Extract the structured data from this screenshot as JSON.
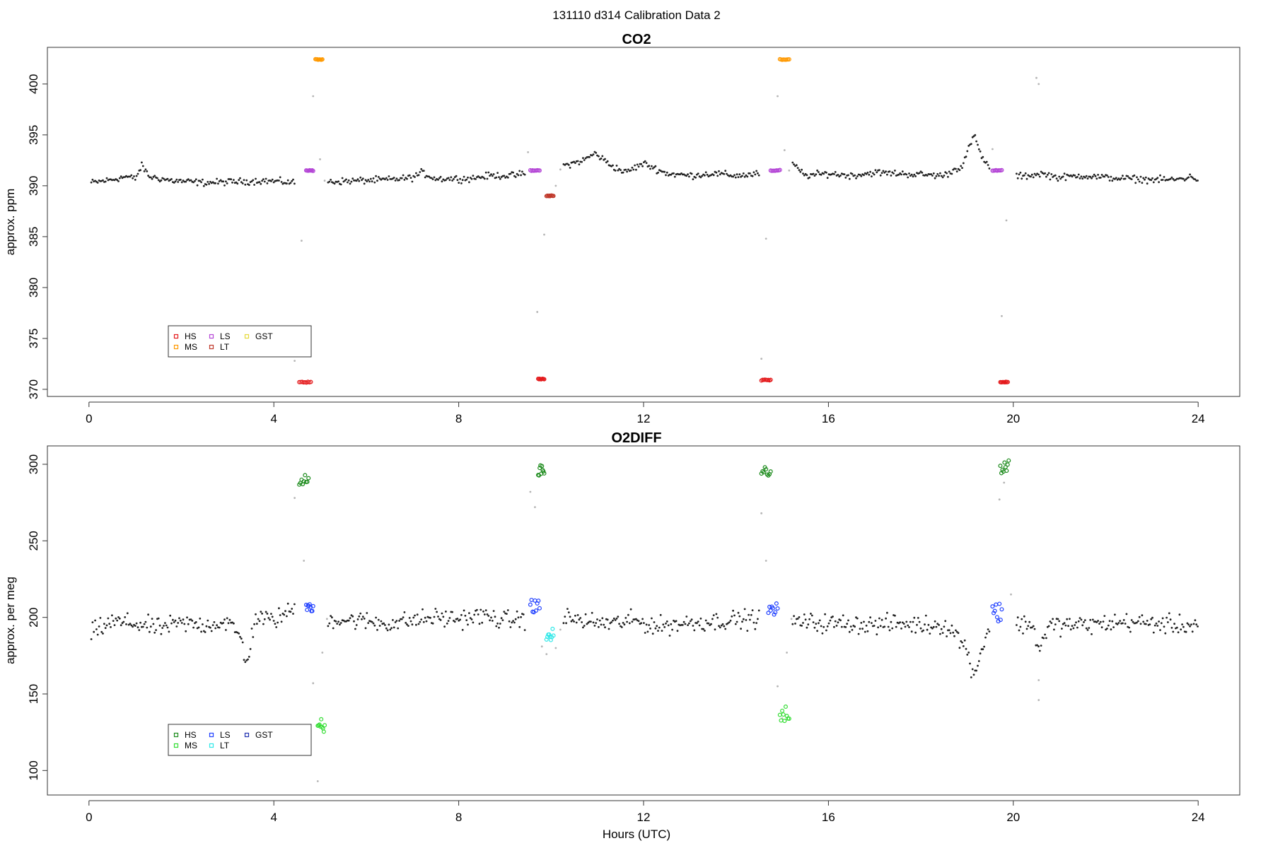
{
  "figure": {
    "suptitle": "131110   d314   Calibration Data 2",
    "xlabel": "Hours (UTC)"
  },
  "chart_data": [
    {
      "type": "scatter",
      "title": "CO2",
      "xlabel": "",
      "ylabel": "approx. ppm",
      "xlim": [
        -0.9,
        24.9
      ],
      "ylim": [
        369.3,
        403.6
      ],
      "xticks": [
        0,
        4,
        8,
        12,
        16,
        20,
        24
      ],
      "yticks": [
        370,
        375,
        380,
        385,
        390,
        395,
        400
      ],
      "grid": false,
      "legend_position": "bottom-left",
      "legend": [
        {
          "name": "HS",
          "color": "#e41a1c"
        },
        {
          "name": "MS",
          "color": "#ff9900"
        },
        {
          "name": "LS",
          "color": "#b446d6"
        },
        {
          "name": "LT",
          "color": "#c0392b"
        },
        {
          "name": "GST",
          "color": "#e6d93a"
        }
      ],
      "ambient_trace": [
        [
          0.05,
          390.3
        ],
        [
          0.5,
          390.6
        ],
        [
          0.8,
          390.9
        ],
        [
          1.0,
          390.7
        ],
        [
          1.15,
          392.0
        ],
        [
          1.3,
          390.9
        ],
        [
          1.8,
          390.5
        ],
        [
          2.5,
          390.3
        ],
        [
          3.2,
          390.4
        ],
        [
          3.8,
          390.5
        ],
        [
          4.5,
          390.3
        ],
        [
          5.2,
          390.4
        ],
        [
          5.8,
          390.5
        ],
        [
          6.5,
          390.6
        ],
        [
          7.0,
          390.8
        ],
        [
          7.2,
          391.3
        ],
        [
          7.5,
          390.7
        ],
        [
          8.2,
          390.7
        ],
        [
          8.7,
          391.0
        ],
        [
          9.2,
          391.0
        ],
        [
          9.6,
          391.4
        ],
        [
          10.3,
          392.0
        ],
        [
          10.7,
          392.5
        ],
        [
          10.95,
          393.2
        ],
        [
          11.3,
          392.0
        ],
        [
          11.6,
          391.3
        ],
        [
          12.0,
          392.2
        ],
        [
          12.5,
          391.2
        ],
        [
          13.0,
          391.0
        ],
        [
          13.5,
          391.2
        ],
        [
          14.0,
          391.0
        ],
        [
          14.4,
          391.1
        ],
        [
          15.2,
          392.2
        ],
        [
          15.5,
          391.0
        ],
        [
          16.0,
          391.2
        ],
        [
          16.5,
          391.0
        ],
        [
          17.0,
          391.3
        ],
        [
          17.5,
          391.2
        ],
        [
          18.0,
          391.1
        ],
        [
          18.5,
          391.0
        ],
        [
          18.9,
          392.0
        ],
        [
          19.15,
          395.0
        ],
        [
          19.3,
          393.0
        ],
        [
          19.55,
          391.3
        ],
        [
          20.2,
          390.9
        ],
        [
          20.6,
          391.2
        ],
        [
          21.0,
          390.8
        ],
        [
          21.5,
          391.0
        ],
        [
          22.0,
          390.8
        ],
        [
          22.5,
          390.7
        ],
        [
          23.0,
          390.6
        ],
        [
          23.5,
          390.6
        ],
        [
          23.9,
          390.9
        ],
        [
          24.0,
          390.5
        ]
      ],
      "calibration_points": [
        {
          "name": "HS",
          "x": [
            4.55,
            4.8
          ],
          "y": 370.7
        },
        {
          "name": "MS",
          "x": [
            4.9,
            5.05
          ],
          "y": 402.4
        },
        {
          "name": "LS",
          "x": [
            4.7,
            4.85
          ],
          "y": 391.5
        },
        {
          "name": "HS",
          "x": [
            9.72,
            9.85
          ],
          "y": 371.0
        },
        {
          "name": "LS",
          "x": [
            9.55,
            9.75
          ],
          "y": 391.5
        },
        {
          "name": "LT",
          "x": [
            9.9,
            10.05
          ],
          "y": 389.0
        },
        {
          "name": "HS",
          "x": [
            14.55,
            14.75
          ],
          "y": 370.9
        },
        {
          "name": "MS",
          "x": [
            14.95,
            15.15
          ],
          "y": 402.4
        },
        {
          "name": "LS",
          "x": [
            14.75,
            14.95
          ],
          "y": 391.5
        },
        {
          "name": "HS",
          "x": [
            19.72,
            19.88
          ],
          "y": 370.7
        },
        {
          "name": "LS",
          "x": [
            19.55,
            19.75
          ],
          "y": 391.5
        }
      ],
      "transition_points": [
        [
          4.45,
          372.8
        ],
        [
          4.6,
          384.6
        ],
        [
          4.85,
          398.8
        ],
        [
          5.0,
          392.6
        ],
        [
          5.1,
          390.5
        ],
        [
          9.5,
          393.3
        ],
        [
          9.7,
          377.6
        ],
        [
          9.85,
          385.2
        ],
        [
          10.1,
          390.0
        ],
        [
          10.2,
          391.6
        ],
        [
          14.55,
          373.0
        ],
        [
          14.65,
          384.8
        ],
        [
          14.9,
          398.8
        ],
        [
          15.05,
          393.5
        ],
        [
          15.15,
          391.5
        ],
        [
          19.55,
          393.6
        ],
        [
          19.75,
          377.2
        ],
        [
          19.85,
          386.6
        ],
        [
          20.5,
          400.6
        ],
        [
          20.55,
          400.0
        ]
      ]
    },
    {
      "type": "scatter",
      "title": "O2DIFF",
      "xlabel": "Hours (UTC)",
      "ylabel": "approx. per meg",
      "xlim": [
        -0.9,
        24.9
      ],
      "ylim": [
        84,
        312
      ],
      "xticks": [
        0,
        4,
        8,
        12,
        16,
        20,
        24
      ],
      "yticks": [
        100,
        150,
        200,
        250,
        300
      ],
      "grid": false,
      "legend_position": "bottom-left",
      "legend": [
        {
          "name": "HS",
          "color": "#1a8a1a"
        },
        {
          "name": "MS",
          "color": "#33dd33"
        },
        {
          "name": "LS",
          "color": "#1f3fff"
        },
        {
          "name": "LT",
          "color": "#2ee8e8"
        },
        {
          "name": "GST",
          "color": "#2030b0"
        }
      ],
      "ambient_trace": [
        [
          0.05,
          190
        ],
        [
          0.5,
          197
        ],
        [
          1.0,
          196
        ],
        [
          1.5,
          193
        ],
        [
          2.0,
          196
        ],
        [
          2.5,
          195
        ],
        [
          3.0,
          197
        ],
        [
          3.3,
          186
        ],
        [
          3.4,
          168
        ],
        [
          3.6,
          200
        ],
        [
          4.0,
          198
        ],
        [
          4.4,
          205
        ],
        [
          5.2,
          199
        ],
        [
          5.8,
          198
        ],
        [
          6.5,
          196
        ],
        [
          7.0,
          198
        ],
        [
          7.5,
          200
        ],
        [
          8.0,
          199
        ],
        [
          8.5,
          201
        ],
        [
          9.0,
          198
        ],
        [
          9.5,
          199
        ],
        [
          10.3,
          200
        ],
        [
          10.8,
          197
        ],
        [
          11.3,
          196
        ],
        [
          11.8,
          198
        ],
        [
          12.3,
          194
        ],
        [
          12.8,
          196
        ],
        [
          13.3,
          197
        ],
        [
          13.8,
          198
        ],
        [
          14.3,
          199
        ],
        [
          15.4,
          197
        ],
        [
          16.0,
          196
        ],
        [
          16.5,
          196
        ],
        [
          17.0,
          195
        ],
        [
          17.5,
          196
        ],
        [
          18.0,
          195
        ],
        [
          18.5,
          195
        ],
        [
          18.8,
          188
        ],
        [
          19.0,
          178
        ],
        [
          19.15,
          162
        ],
        [
          19.3,
          178
        ],
        [
          19.5,
          195
        ],
        [
          20.1,
          195
        ],
        [
          20.4,
          196
        ],
        [
          20.55,
          180
        ],
        [
          20.8,
          195
        ],
        [
          21.5,
          195
        ],
        [
          22.0,
          196
        ],
        [
          22.5,
          197
        ],
        [
          23.0,
          196
        ],
        [
          23.5,
          195
        ],
        [
          24.0,
          195
        ]
      ],
      "calibration_points": [
        {
          "name": "HS",
          "x": [
            4.55,
            4.75
          ],
          "y": 288
        },
        {
          "name": "MS",
          "x": [
            4.95,
            5.1
          ],
          "y": 128
        },
        {
          "name": "LS",
          "x": [
            4.7,
            4.85
          ],
          "y": 206
        },
        {
          "name": "HS",
          "x": [
            9.72,
            9.85
          ],
          "y": 296
        },
        {
          "name": "LS",
          "x": [
            9.55,
            9.75
          ],
          "y": 208
        },
        {
          "name": "LT",
          "x": [
            9.9,
            10.05
          ],
          "y": 188
        },
        {
          "name": "HS",
          "x": [
            14.55,
            14.75
          ],
          "y": 295
        },
        {
          "name": "MS",
          "x": [
            14.95,
            15.15
          ],
          "y": 136
        },
        {
          "name": "LS",
          "x": [
            14.7,
            14.9
          ],
          "y": 205
        },
        {
          "name": "HS",
          "x": [
            19.72,
            19.9
          ],
          "y": 299
        },
        {
          "name": "LS",
          "x": [
            19.55,
            19.75
          ],
          "y": 204
        }
      ],
      "transition_points": [
        [
          4.45,
          278
        ],
        [
          4.65,
          237
        ],
        [
          4.85,
          157
        ],
        [
          4.95,
          93
        ],
        [
          5.05,
          177
        ],
        [
          5.15,
          199
        ],
        [
          9.55,
          282
        ],
        [
          9.65,
          272
        ],
        [
          9.8,
          181
        ],
        [
          9.9,
          176
        ],
        [
          10.1,
          180
        ],
        [
          10.2,
          192
        ],
        [
          14.55,
          268
        ],
        [
          14.65,
          237
        ],
        [
          14.9,
          155
        ],
        [
          15.0,
          134
        ],
        [
          15.1,
          177
        ],
        [
          15.2,
          199
        ],
        [
          19.7,
          277
        ],
        [
          19.8,
          288
        ],
        [
          19.95,
          215
        ],
        [
          20.55,
          159
        ],
        [
          20.55,
          146
        ]
      ]
    }
  ]
}
